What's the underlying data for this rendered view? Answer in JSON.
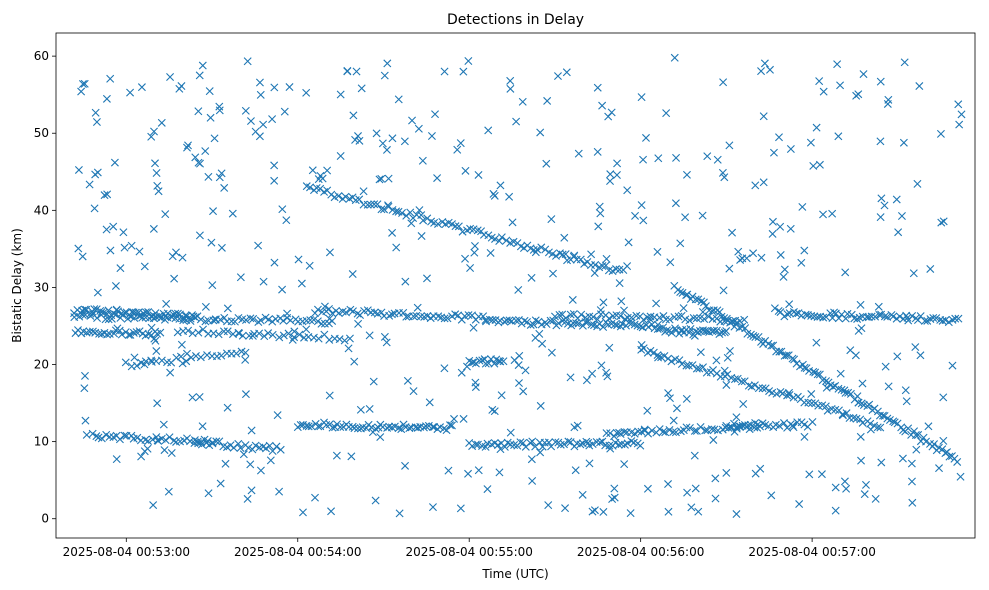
{
  "chart_data": {
    "type": "scatter",
    "title": "Detections in Delay",
    "xlabel": "Time (UTC)",
    "ylabel": "Bistatic Delay (km)",
    "marker": "x",
    "color": "#1f77b4",
    "xlim_minutes": [
      52.59,
      57.95
    ],
    "ylim": [
      -2.5,
      63
    ],
    "x_ticks": [
      {
        "value": 53,
        "label": "2025-08-04 00:53:00"
      },
      {
        "value": 54,
        "label": "2025-08-04 00:54:00"
      },
      {
        "value": 55,
        "label": "2025-08-04 00:55:00"
      },
      {
        "value": 56,
        "label": "2025-08-04 00:56:00"
      },
      {
        "value": 57,
        "label": "2025-08-04 00:57:00"
      }
    ],
    "y_ticks": [
      {
        "value": 0,
        "label": "0"
      },
      {
        "value": 10,
        "label": "10"
      },
      {
        "value": 20,
        "label": "20"
      },
      {
        "value": 30,
        "label": "30"
      },
      {
        "value": 40,
        "label": "40"
      },
      {
        "value": 50,
        "label": "50"
      },
      {
        "value": 60,
        "label": "60"
      }
    ],
    "tracks": [
      {
        "name": "track-27",
        "x": [
          52.7,
          53.4
        ],
        "y": [
          27,
          26.2
        ],
        "n": 50
      },
      {
        "name": "track-26a",
        "x": [
          52.7,
          54.2
        ],
        "y": [
          26.3,
          25.6
        ],
        "n": 70
      },
      {
        "name": "track-24a",
        "x": [
          52.7,
          53.2
        ],
        "y": [
          24.3,
          24.0
        ],
        "n": 30
      },
      {
        "name": "track-20a",
        "x": [
          53.0,
          53.7
        ],
        "y": [
          20.0,
          21.5
        ],
        "n": 25
      },
      {
        "name": "track-24b",
        "x": [
          53.3,
          54.3
        ],
        "y": [
          24.5,
          23.4
        ],
        "n": 35
      },
      {
        "name": "track-26b",
        "x": [
          54.1,
          55.1
        ],
        "y": [
          27.0,
          26.0
        ],
        "n": 50
      },
      {
        "name": "track-25a",
        "x": [
          55.1,
          56.1
        ],
        "y": [
          25.6,
          25.0
        ],
        "n": 60
      },
      {
        "name": "track-25b",
        "x": [
          55.5,
          56.6
        ],
        "y": [
          26.3,
          25.8
        ],
        "n": 50
      },
      {
        "name": "track-24c",
        "x": [
          56.1,
          56.5
        ],
        "y": [
          24.5,
          24.0
        ],
        "n": 30
      },
      {
        "name": "track-26c",
        "x": [
          56.8,
          57.85
        ],
        "y": [
          26.6,
          25.8
        ],
        "n": 60
      },
      {
        "name": "track-10a",
        "x": [
          52.8,
          53.5
        ],
        "y": [
          10.8,
          10.0
        ],
        "n": 35
      },
      {
        "name": "track-10b",
        "x": [
          53.4,
          53.9
        ],
        "y": [
          10.0,
          9.0
        ],
        "n": 25
      },
      {
        "name": "track-12",
        "x": [
          54.0,
          54.9
        ],
        "y": [
          12.2,
          11.8
        ],
        "n": 55
      },
      {
        "name": "track-10c",
        "x": [
          55.0,
          56.0
        ],
        "y": [
          9.6,
          9.8
        ],
        "n": 55
      },
      {
        "name": "track-11a",
        "x": [
          55.8,
          56.7
        ],
        "y": [
          11.0,
          12.0
        ],
        "n": 45
      },
      {
        "name": "track-12b",
        "x": [
          56.5,
          57.0
        ],
        "y": [
          12.0,
          12.2
        ],
        "n": 25
      },
      {
        "name": "track-descent-a",
        "x": [
          54.05,
          55.9
        ],
        "y": [
          43.0,
          32.0
        ],
        "n": 90
      },
      {
        "name": "track-descent-b",
        "x": [
          56.2,
          57.85
        ],
        "y": [
          30.0,
          7.5
        ],
        "n": 110
      },
      {
        "name": "track-descent-c",
        "x": [
          56.0,
          57.4
        ],
        "y": [
          22.0,
          12.0
        ],
        "n": 70
      },
      {
        "name": "track-20b",
        "x": [
          55.0,
          55.2
        ],
        "y": [
          20.5,
          20.3
        ],
        "n": 15
      }
    ],
    "noise": {
      "count": 520,
      "y_range": [
        0.5,
        60
      ]
    }
  }
}
